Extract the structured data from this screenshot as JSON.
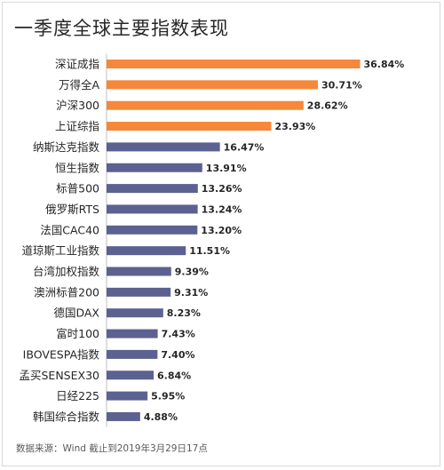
{
  "title": "一季度全球主要指数表现",
  "source": "数据来源：Wind 截止到2019年3月29日17点",
  "colors": {
    "highlight": "#f5883a",
    "normal": "#5b6190"
  },
  "chart_data": {
    "type": "bar",
    "orientation": "horizontal",
    "title": "一季度全球主要指数表现",
    "xlabel": "",
    "ylabel": "",
    "xlim": [
      0,
      40
    ],
    "grid": false,
    "highlight_count": 4,
    "categories": [
      "深证成指",
      "万得全A",
      "沪深300",
      "上证综指",
      "纳斯达克指数",
      "恒生指数",
      "标普500",
      "俄罗斯RTS",
      "法国CAC40",
      "道琼斯工业指数",
      "台湾加权指数",
      "澳洲标普200",
      "德国DAX",
      "富时100",
      "IBOVESPA指数",
      "孟买SENSEX30",
      "日经225",
      "韩国综合指数"
    ],
    "values": [
      36.84,
      30.71,
      28.62,
      23.93,
      16.47,
      13.91,
      13.26,
      13.24,
      13.2,
      11.51,
      9.39,
      9.31,
      8.23,
      7.43,
      7.4,
      6.84,
      5.95,
      4.88
    ],
    "labels": [
      "36.84%",
      "30.71%",
      "28.62%",
      "23.93%",
      "16.47%",
      "13.91%",
      "13.26%",
      "13.24%",
      "13.20%",
      "11.51%",
      "9.39%",
      "9.31%",
      "8.23%",
      "7.43%",
      "7.40%",
      "6.84%",
      "5.95%",
      "4.88%"
    ]
  }
}
